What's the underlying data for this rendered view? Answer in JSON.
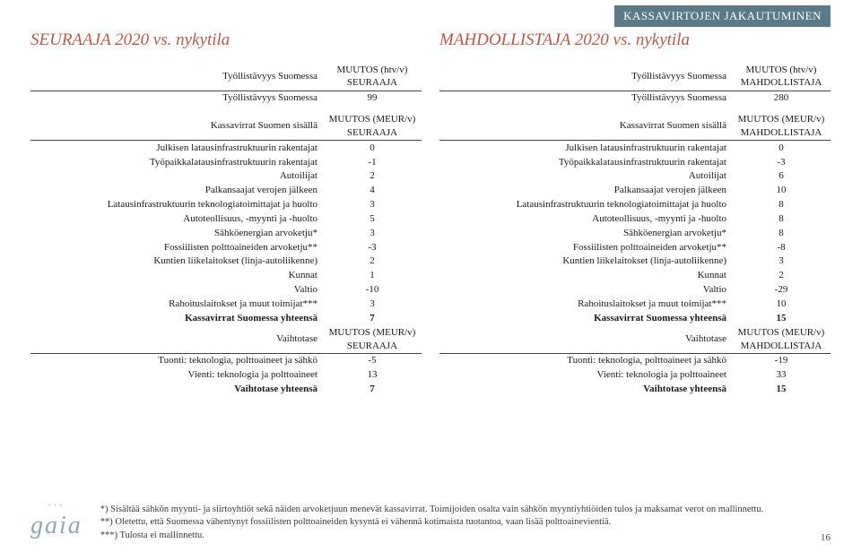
{
  "banner": "KASSAVIRTOJEN JAKAUTUMINEN",
  "left": {
    "title": "SEURAAJA 2020 vs. nykytila",
    "scenarioLabel": "SEURAAJA",
    "emp": {
      "header_label": "Työllistävyys Suomessa",
      "header_unit": "MUUTOS (htv/v)",
      "rows": [
        {
          "label": "Työllistävyys Suomessa",
          "val": "99"
        }
      ]
    },
    "kv": {
      "header_label": "Kassavirrat Suomen sisällä",
      "header_unit": "MUUTOS (MEUR/v)",
      "rows": [
        {
          "label": "Julkisen latausinfrastruktuurin rakentajat",
          "val": "0"
        },
        {
          "label": "Työpaikkalatausinfrastruktuurin rakentajat",
          "val": "-1"
        },
        {
          "label": "Autoilijat",
          "val": "2"
        },
        {
          "label": "Palkansaajat verojen jälkeen",
          "val": "4"
        },
        {
          "label": "Latausinfrastruktuurin teknologiatoimittajat ja huolto",
          "val": "3"
        },
        {
          "label": "Autoteollisuus, -myynti ja -huolto",
          "val": "5"
        },
        {
          "label": "Sähköenergian arvoketju*",
          "val": "3"
        },
        {
          "label": "Fossiilisten polttoaineiden arvoketju**",
          "val": "-3"
        },
        {
          "label": "Kuntien liikelaitokset (linja-autoliikenne)",
          "val": "2"
        },
        {
          "label": "Kunnat",
          "val": "1"
        },
        {
          "label": "Valtio",
          "val": "-10"
        },
        {
          "label": "Rahoituslaitokset ja muut toimijat***",
          "val": "3"
        }
      ],
      "total_label": "Kassavirrat Suomessa yhteensä",
      "total_val": "7"
    },
    "vt": {
      "header_label": "Vaihtotase",
      "header_unit": "MUUTOS (MEUR/v)",
      "rows": [
        {
          "label": "Tuonti: teknologia, polttoaineet ja sähkö",
          "val": "-5"
        },
        {
          "label": "Vienti: teknologia ja polttoaineet",
          "val": "13"
        }
      ],
      "total_label": "Vaihtotase yhteensä",
      "total_val": "7"
    }
  },
  "right": {
    "title": "MAHDOLLISTAJA 2020 vs. nykytila",
    "scenarioLabel": "MAHDOLLISTAJA",
    "emp": {
      "header_label": "Työllistävyys Suomessa",
      "header_unit": "MUUTOS (htv/v)",
      "rows": [
        {
          "label": "Työllistävyys Suomessa",
          "val": "280"
        }
      ]
    },
    "kv": {
      "header_label": "Kassavirrat Suomen sisällä",
      "header_unit": "MUUTOS (MEUR/v)",
      "rows": [
        {
          "label": "Julkisen latausinfrastruktuurin rakentajat",
          "val": "0"
        },
        {
          "label": "Työpaikkalatausinfrastruktuurin rakentajat",
          "val": "-3"
        },
        {
          "label": "Autoilijat",
          "val": "6"
        },
        {
          "label": "Palkansaajat verojen jälkeen",
          "val": "10"
        },
        {
          "label": "Latausinfrastruktuurin teknologiatoimittajat ja huolto",
          "val": "8"
        },
        {
          "label": "Autoteollisuus, -myynti ja -huolto",
          "val": "8"
        },
        {
          "label": "Sähköenergian arvoketju*",
          "val": "8"
        },
        {
          "label": "Fossiilisten polttoaineiden arvoketju**",
          "val": "-8"
        },
        {
          "label": "Kuntien liikelaitokset (linja-autoliikenne)",
          "val": "3"
        },
        {
          "label": "Kunnat",
          "val": "2"
        },
        {
          "label": "Valtio",
          "val": "-29"
        },
        {
          "label": "Rahoituslaitokset ja muut toimijat***",
          "val": "10"
        }
      ],
      "total_label": "Kassavirrat Suomessa yhteensä",
      "total_val": "15"
    },
    "vt": {
      "header_label": "Vaihtotase",
      "header_unit": "MUUTOS (MEUR/v)",
      "rows": [
        {
          "label": "Tuonti: teknologia, polttoaineet ja sähkö",
          "val": "-19"
        },
        {
          "label": "Vienti: teknologia ja polttoaineet",
          "val": "33"
        }
      ],
      "total_label": "Vaihtotase yhteensä",
      "total_val": "15"
    }
  },
  "logo": "gaia",
  "notes": {
    "n1": "*) Sisältää sähkön myynti- ja siirtoyhtiöt sekä näiden arvoketjuun menevät kassavirrat. Toimijoiden osalta vain sähkön myyntiyhtiöiden tulos ja maksamat verot on mallinnettu.",
    "n2": "**) Oletettu, että Suomessa vähentynyt fossiilisten polttoaineiden kysyntä ei vähennä kotimaista tuotantoa, vaan lisää polttoainevientiä.",
    "n3": "***) Tulosta ei mallinnettu."
  },
  "page": "16"
}
